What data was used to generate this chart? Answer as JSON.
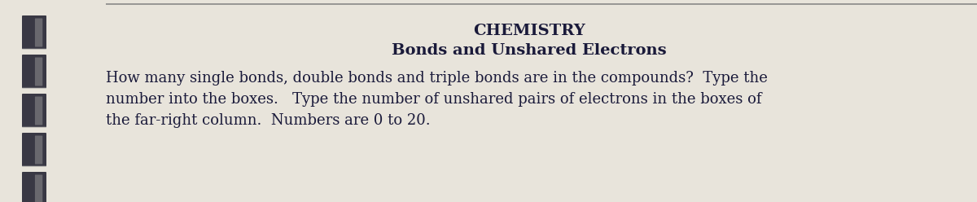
{
  "title_line1": "CHEMISTRY",
  "title_line2": "Bonds and Unshared Electrons",
  "body_line1": "How many single bonds, double bonds and triple bonds are in the compounds?  Type the",
  "body_line2": "number into the boxes.   Type the number of unshared pairs of electrons in the boxes of",
  "body_line3": "the far-right column.  Numbers are 0 to 20.",
  "background_color": "#e8e4db",
  "text_color": "#1a1a3a",
  "title1_fontsize": 14,
  "title2_fontsize": 14,
  "body_fontsize": 13,
  "spiral_dark": "#1a1a2a",
  "spiral_mid": "#4a4a5a",
  "spiral_light": "#9a9898",
  "top_line_color": "#888888",
  "fig_width": 12.0,
  "fig_height": 2.48,
  "dpi": 100
}
